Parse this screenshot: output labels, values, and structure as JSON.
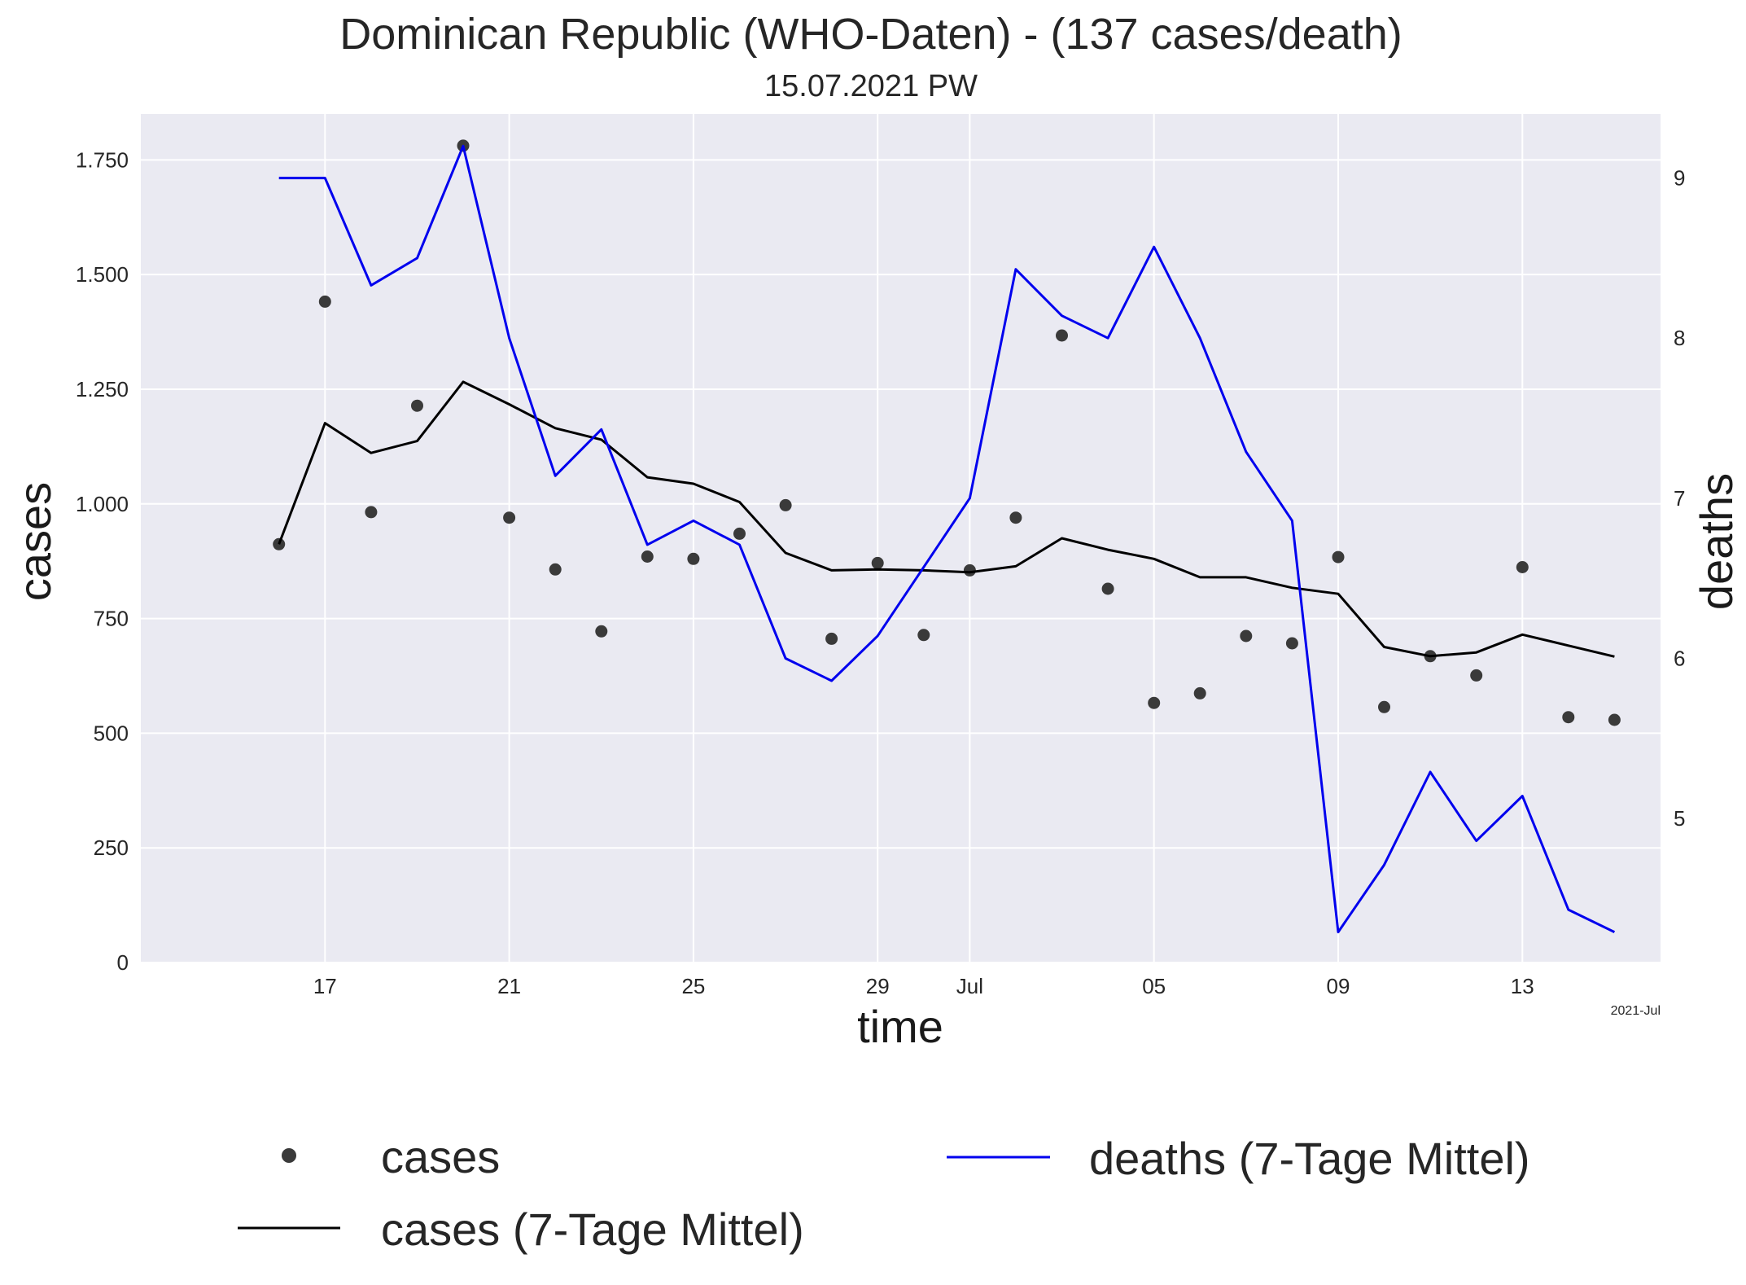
{
  "chart_data": {
    "type": "line",
    "title": "Dominican Republic (WHO-Daten) - (137 cases/death)",
    "subtitle": "15.07.2021 PW",
    "xlabel": "time",
    "ylabel": "cases",
    "y2label": "deaths",
    "x_offset_label": "2021-Jul",
    "x": [
      "2021-06-16",
      "2021-06-17",
      "2021-06-18",
      "2021-06-19",
      "2021-06-20",
      "2021-06-21",
      "2021-06-22",
      "2021-06-23",
      "2021-06-24",
      "2021-06-25",
      "2021-06-26",
      "2021-06-27",
      "2021-06-28",
      "2021-06-29",
      "2021-06-30",
      "2021-07-01",
      "2021-07-02",
      "2021-07-03",
      "2021-07-04",
      "2021-07-05",
      "2021-07-06",
      "2021-07-07",
      "2021-07-08",
      "2021-07-09",
      "2021-07-10",
      "2021-07-11",
      "2021-07-12",
      "2021-07-13",
      "2021-07-14",
      "2021-07-15"
    ],
    "x_ticks": [
      {
        "date": "2021-06-17",
        "label": "17"
      },
      {
        "date": "2021-06-21",
        "label": "21"
      },
      {
        "date": "2021-06-25",
        "label": "25"
      },
      {
        "date": "2021-06-29",
        "label": "29"
      },
      {
        "date": "2021-07-01",
        "label": "Jul"
      },
      {
        "date": "2021-07-05",
        "label": "05"
      },
      {
        "date": "2021-07-09",
        "label": "09"
      },
      {
        "date": "2021-07-13",
        "label": "13"
      }
    ],
    "xlim": [
      "2021-06-13",
      "2021-07-16"
    ],
    "ylim": [
      0,
      1850
    ],
    "y_ticks": [
      {
        "value": 0,
        "label": "0"
      },
      {
        "value": 250,
        "label": "250"
      },
      {
        "value": 500,
        "label": "500"
      },
      {
        "value": 750,
        "label": "750"
      },
      {
        "value": 1000,
        "label": "1.000"
      },
      {
        "value": 1250,
        "label": "1.250"
      },
      {
        "value": 1500,
        "label": "1.500"
      },
      {
        "value": 1750,
        "label": "1.750"
      }
    ],
    "y2lim": [
      4.1,
      9.4
    ],
    "y2_ticks": [
      {
        "value": 5,
        "label": "5"
      },
      {
        "value": 6,
        "label": "6"
      },
      {
        "value": 7,
        "label": "7"
      },
      {
        "value": 8,
        "label": "8"
      },
      {
        "value": 9,
        "label": "9"
      }
    ],
    "grid": true,
    "legend_position": "bottom",
    "series": [
      {
        "name": "cases",
        "kind": "scatter",
        "axis": "left",
        "color": "#3a3a3a",
        "values": [
          912,
          1441,
          982,
          1214,
          1781,
          970,
          857,
          722,
          885,
          880,
          935,
          997,
          706,
          871,
          714,
          855,
          970,
          1367,
          815,
          566,
          587,
          712,
          696,
          884,
          557,
          668,
          626,
          862,
          535,
          529
        ]
      },
      {
        "name": "cases (7-Tage Mittel)",
        "kind": "line",
        "axis": "left",
        "color": "#000000",
        "values": [
          912,
          1176,
          1111,
          1137,
          1266,
          1217,
          1165,
          1140,
          1058,
          1044,
          1004,
          893,
          855,
          857,
          855,
          851,
          864,
          925,
          900,
          880,
          840,
          840,
          817,
          804,
          688,
          668,
          676,
          715,
          691,
          667
        ]
      },
      {
        "name": "deaths (7-Tage Mittel)",
        "kind": "line",
        "axis": "right",
        "color": "#0000ee",
        "values": [
          9.0,
          9.0,
          8.33,
          8.5,
          9.2,
          8.0,
          7.14,
          7.43,
          6.71,
          6.86,
          6.71,
          6.0,
          5.86,
          6.14,
          6.57,
          7.0,
          8.43,
          8.14,
          8.0,
          8.57,
          8.0,
          7.29,
          6.86,
          4.29,
          4.71,
          5.29,
          4.86,
          5.14,
          4.43,
          4.29
        ]
      }
    ]
  },
  "colors": {
    "plot_background": "#eaeaf2",
    "grid": "#ffffff",
    "cases_points": "#3a3a3a",
    "cases_avg": "#000000",
    "deaths_avg": "#0000ee",
    "y2label": "#0000ee"
  }
}
